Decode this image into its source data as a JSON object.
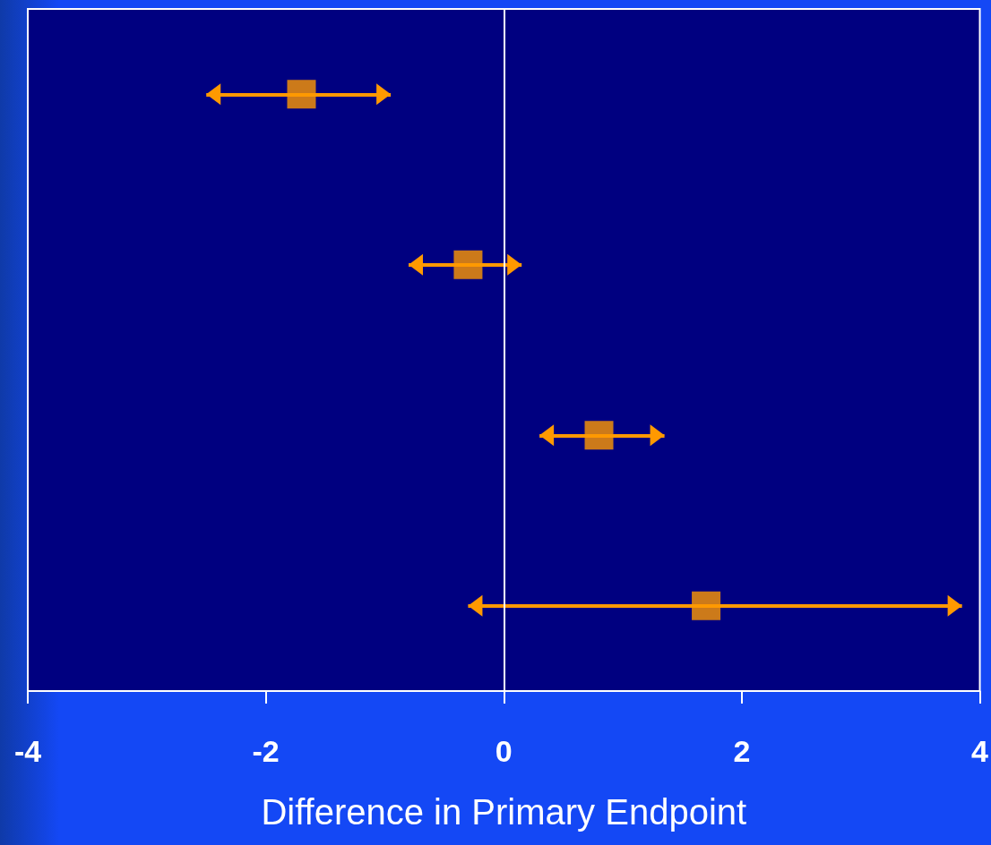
{
  "chart_data": {
    "type": "scatter",
    "orientation": "horizontal",
    "xlabel": "Difference in Primary Endpoint",
    "categories": [
      null,
      null,
      null,
      null
    ],
    "values": [
      -1.7,
      -0.3,
      0.8,
      1.7
    ],
    "errors": [
      [
        -2.5,
        -0.95
      ],
      [
        -0.8,
        0.15
      ],
      [
        0.3,
        1.35
      ],
      [
        -0.3,
        3.85
      ]
    ],
    "color": "#ff9900",
    "marker": "square",
    "xlim": [
      -4,
      4
    ],
    "xticks": [
      -4,
      -2,
      0,
      2,
      4
    ],
    "tick_labels": "x",
    "grid": false,
    "ref_lines": [
      {
        "axis": "x",
        "value": 0,
        "color": "#ffffff"
      }
    ]
  }
}
